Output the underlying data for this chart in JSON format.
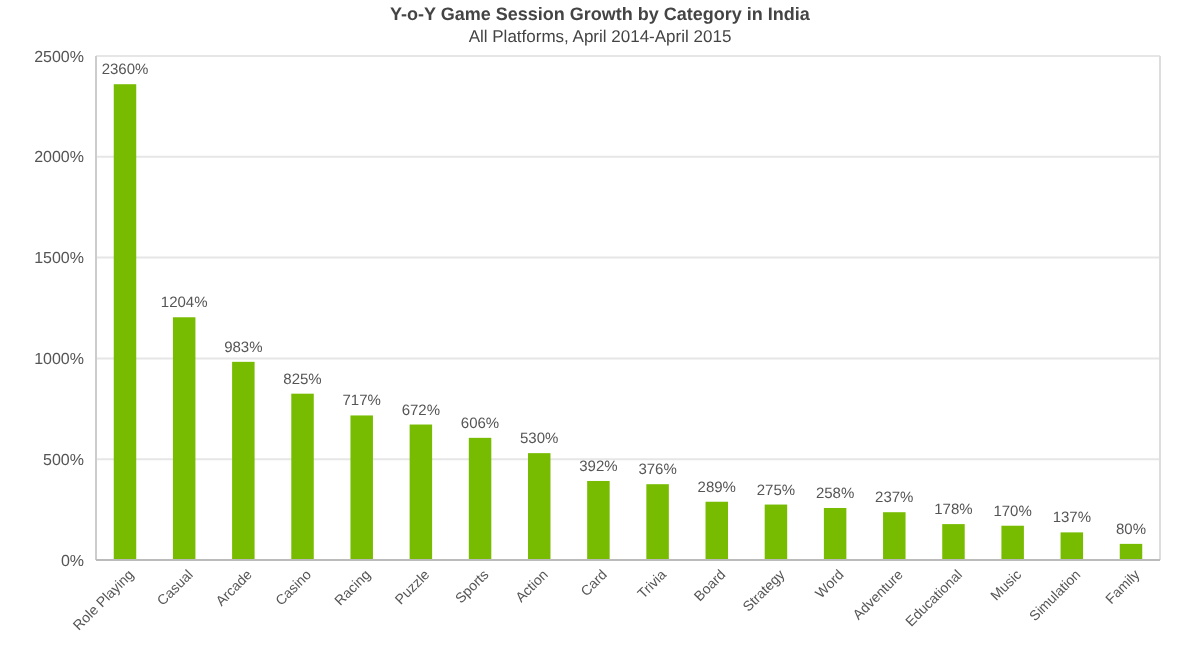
{
  "chart_data": {
    "type": "bar",
    "title": "Y-o-Y Game Session Growth by Category in India",
    "subtitle": "All Platforms, April 2014-April 2015",
    "categories": [
      "Role Playing",
      "Casual",
      "Arcade",
      "Casino",
      "Racing",
      "Puzzle",
      "Sports",
      "Action",
      "Card",
      "Trivia",
      "Board",
      "Strategy",
      "Word",
      "Adventure",
      "Educational",
      "Music",
      "Simulation",
      "Family"
    ],
    "values": [
      2360,
      1204,
      983,
      825,
      717,
      672,
      606,
      530,
      392,
      376,
      289,
      275,
      258,
      237,
      178,
      170,
      137,
      80
    ],
    "value_labels": [
      "2360%",
      "1204%",
      "983%",
      "825%",
      "717%",
      "672%",
      "606%",
      "530%",
      "392%",
      "376%",
      "289%",
      "275%",
      "258%",
      "237%",
      "178%",
      "170%",
      "137%",
      "80%"
    ],
    "color": "#77bc00",
    "ylim": [
      0,
      2500
    ],
    "yticks": [
      {
        "value": 0,
        "label": "0%"
      },
      {
        "value": 500,
        "label": "500%"
      },
      {
        "value": 1000,
        "label": "1000%"
      },
      {
        "value": 1500,
        "label": "1500%"
      },
      {
        "value": 2000,
        "label": "2000%"
      },
      {
        "value": 2500,
        "label": "2500%"
      }
    ],
    "grid": "y"
  }
}
